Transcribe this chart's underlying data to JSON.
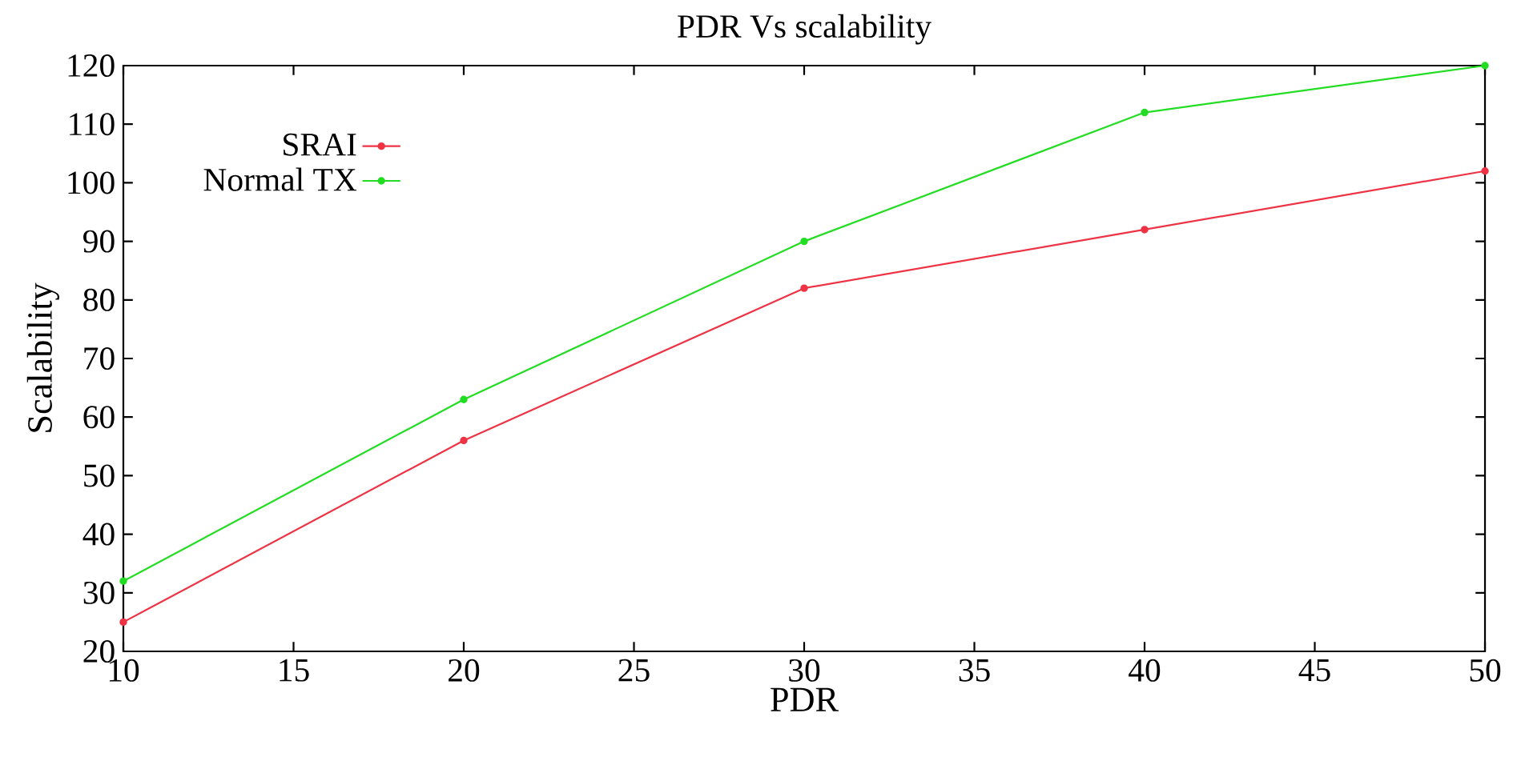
{
  "chart_data": {
    "type": "line",
    "title": "PDR Vs scalability",
    "xlabel": "PDR",
    "ylabel": "Scalability",
    "x": [
      10,
      20,
      30,
      40,
      50
    ],
    "series": [
      {
        "name": "SRAI",
        "color": "#ee3344",
        "values": [
          25,
          56,
          82,
          92,
          102
        ]
      },
      {
        "name": "Normal TX",
        "color": "#22dd22",
        "values": [
          32,
          63,
          90,
          112,
          120
        ]
      }
    ],
    "xlim": [
      10,
      50
    ],
    "xticks": [
      10,
      15,
      20,
      25,
      30,
      35,
      40,
      45,
      50
    ],
    "ylim": [
      20,
      120
    ],
    "yticks": [
      20,
      30,
      40,
      50,
      60,
      70,
      80,
      90,
      100,
      110,
      120
    ],
    "legend": "top left",
    "marker": "circle",
    "grid": false
  }
}
